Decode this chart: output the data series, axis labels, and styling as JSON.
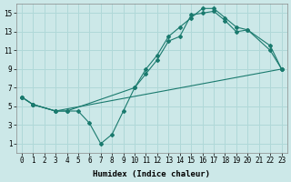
{
  "xlabel": "Humidex (Indice chaleur)",
  "bg_color": "#cce8e8",
  "grid_color": "#b0d8d8",
  "line_color": "#1a7a6e",
  "xlim": [
    -0.5,
    23.5
  ],
  "ylim": [
    0,
    16
  ],
  "xticks": [
    0,
    1,
    2,
    3,
    4,
    5,
    6,
    7,
    8,
    9,
    10,
    11,
    12,
    13,
    14,
    15,
    16,
    17,
    18,
    19,
    20,
    21,
    22,
    23
  ],
  "yticks": [
    1,
    3,
    5,
    7,
    9,
    11,
    13,
    15
  ],
  "line1_x": [
    0,
    1,
    3,
    4,
    5,
    6,
    7,
    8,
    9,
    10,
    11,
    12,
    13,
    14,
    15,
    16,
    17,
    18,
    19,
    20,
    22,
    23
  ],
  "line1_y": [
    6,
    5.2,
    4.5,
    4.5,
    4.5,
    3.2,
    1.0,
    2.0,
    4.5,
    7.0,
    8.5,
    10.0,
    12.0,
    12.5,
    14.8,
    15.0,
    15.2,
    14.2,
    13.0,
    13.2,
    11.0,
    9.0
  ],
  "line2_x": [
    0,
    1,
    3,
    23
  ],
  "line2_y": [
    6,
    5.2,
    4.5,
    9.0
  ],
  "line3_x": [
    0,
    1,
    3,
    4,
    10,
    11,
    12,
    13,
    14,
    15,
    16,
    17,
    18,
    19,
    20,
    22,
    23
  ],
  "line3_y": [
    6,
    5.2,
    4.5,
    4.5,
    7.0,
    9.0,
    10.5,
    12.5,
    13.5,
    14.5,
    15.5,
    15.5,
    14.5,
    13.5,
    13.2,
    11.5,
    9.0
  ],
  "xlabel_fontsize": 6.5,
  "tick_fontsize": 5.5
}
